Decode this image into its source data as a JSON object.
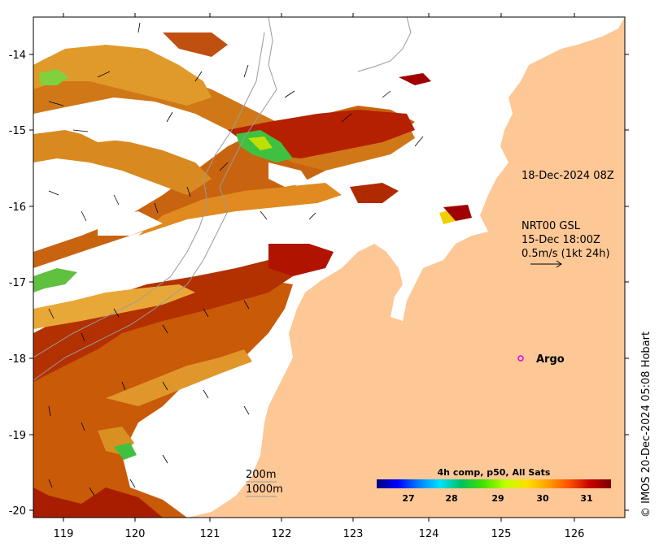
{
  "map": {
    "lon_ticks": [
      "119",
      "120",
      "121",
      "122",
      "123",
      "124",
      "125",
      "126"
    ],
    "lat_ticks": [
      "-14",
      "-15",
      "-16",
      "-17",
      "-18",
      "-19",
      "-20"
    ],
    "lon_range": [
      118.6,
      126.7
    ],
    "lat_range": [
      -20.1,
      -13.5
    ]
  },
  "annotations": {
    "date_label": "18-Dec-2024 08Z",
    "nrt_title": "NRT00 GSL",
    "nrt_time": "15-Dec 18:00Z",
    "nrt_scale": "0.5m/s (1kt 24h)",
    "argo_label": "Argo",
    "contour_200": "200m",
    "contour_1000": "1000m",
    "credit": "© IMOS 20-Dec-2024 05:08 Hobart"
  },
  "colorbar": {
    "title": "4h comp, p50, All Sats",
    "ticks": [
      "27",
      "28",
      "29",
      "30",
      "31"
    ],
    "colors": [
      "#00007f",
      "#0000ff",
      "#0080ff",
      "#00e0ff",
      "#00ff80",
      "#80ff00",
      "#ffff00",
      "#ffb000",
      "#ff6000",
      "#e00000",
      "#a00000",
      "#800000"
    ]
  },
  "colors": {
    "land": "#fdc896",
    "sea_clear": "#ffffff"
  }
}
